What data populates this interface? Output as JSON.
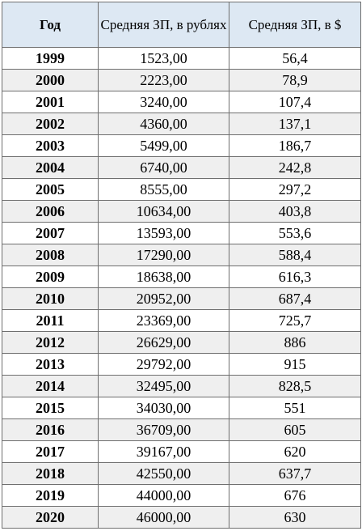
{
  "table": {
    "headers": [
      "Год",
      "Средняя ЗП, в рублях",
      "Средняя ЗП, в $"
    ],
    "rows": [
      [
        "1999",
        "1523,00",
        "56,4"
      ],
      [
        "2000",
        "2223,00",
        "78,9"
      ],
      [
        "2001",
        "3240,00",
        "107,4"
      ],
      [
        "2002",
        "4360,00",
        "137,1"
      ],
      [
        "2003",
        "5499,00",
        "186,7"
      ],
      [
        "2004",
        "6740,00",
        "242,8"
      ],
      [
        "2005",
        "8555,00",
        "297,2"
      ],
      [
        "2006",
        "10634,00",
        "403,8"
      ],
      [
        "2007",
        "13593,00",
        "553,6"
      ],
      [
        "2008",
        "17290,00",
        "588,4"
      ],
      [
        "2009",
        "18638,00",
        "616,3"
      ],
      [
        "2010",
        "20952,00",
        "687,4"
      ],
      [
        "2011",
        "23369,00",
        "725,7"
      ],
      [
        "2012",
        "26629,00",
        "886"
      ],
      [
        "2013",
        "29792,00",
        "915"
      ],
      [
        "2014",
        "32495,00",
        "828,5"
      ],
      [
        "2015",
        "34030,00",
        "551"
      ],
      [
        "2016",
        "36709,00",
        "605"
      ],
      [
        "2017",
        "39167,00",
        "620"
      ],
      [
        "2018",
        "42550,00",
        "637,7"
      ],
      [
        "2019",
        "44000,00",
        "676"
      ],
      [
        "2020",
        "46000,00",
        "630"
      ]
    ]
  },
  "colors": {
    "header_background": "#dde8f3",
    "alt_row_background": "#efefef",
    "border": "#6f6f6f"
  }
}
